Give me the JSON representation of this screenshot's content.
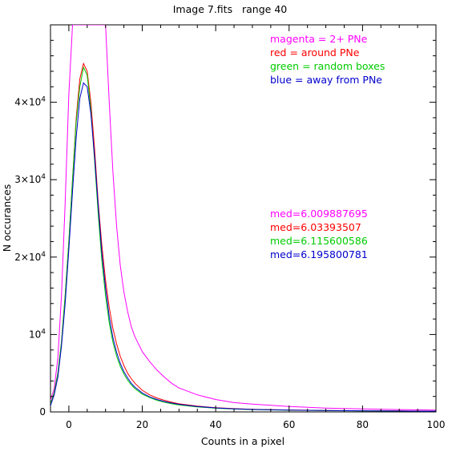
{
  "chart_data": {
    "type": "line",
    "title": "Image 7.fits   range 40",
    "xlabel": "Counts in a pixel",
    "ylabel": "N occurances",
    "xlim": [
      -5,
      100
    ],
    "ylim": [
      0,
      50000
    ],
    "xticks": [
      0,
      20,
      40,
      60,
      80,
      100
    ],
    "xtick_labels": [
      "0",
      "20",
      "40",
      "60",
      "80",
      "100"
    ],
    "yticks": [
      0,
      10000,
      20000,
      30000,
      40000
    ],
    "ytick_labels": [
      {
        "base": "0",
        "exp": ""
      },
      {
        "base": "10",
        "exp": "4"
      },
      {
        "base": "2×10",
        "exp": "4"
      },
      {
        "base": "3×10",
        "exp": "4"
      },
      {
        "base": "4×10",
        "exp": "4"
      }
    ],
    "grid": false,
    "legend_position": "top-right",
    "legend": [
      {
        "text": "magenta = 2+ PNe",
        "color": "#ff00ff"
      },
      {
        "text": "red = around PNe",
        "color": "#ff0000"
      },
      {
        "text": "green = random boxes",
        "color": "#00cc00"
      },
      {
        "text": "blue = away from PNe",
        "color": "#0000cc"
      }
    ],
    "annotations": [
      {
        "text": "med=6.009887695",
        "color": "#ff00ff"
      },
      {
        "text": "med=6.03393507",
        "color": "#ff0000"
      },
      {
        "text": "med=6.115600586",
        "color": "#00cc00"
      },
      {
        "text": "med=6.195800781",
        "color": "#0000cc"
      }
    ],
    "series": [
      {
        "color": "#ff00ff",
        "x": [
          -5,
          -4,
          -3,
          -2,
          -1,
          0,
          1,
          2,
          3,
          4,
          5,
          6,
          7,
          8,
          9,
          10,
          11,
          12,
          13,
          14,
          15,
          16,
          17,
          18,
          20,
          22,
          24,
          26,
          28,
          30,
          35,
          40,
          45,
          50,
          60,
          70,
          80,
          90,
          100
        ],
        "y": [
          1500,
          3000,
          7000,
          15000,
          27000,
          41000,
          50000,
          50000,
          50000,
          50000,
          50000,
          50000,
          50000,
          50000,
          50000,
          50000,
          40000,
          31000,
          24000,
          19000,
          15500,
          13000,
          11000,
          9700,
          7800,
          6500,
          5400,
          4500,
          3700,
          3100,
          2200,
          1600,
          1200,
          1000,
          700,
          500,
          380,
          300,
          230
        ]
      },
      {
        "color": "#ff0000",
        "x": [
          -5,
          -4,
          -3,
          -2,
          -1,
          0,
          1,
          2,
          3,
          4,
          5,
          6,
          7,
          8,
          9,
          10,
          11,
          12,
          13,
          14,
          15,
          16,
          17,
          18,
          20,
          22,
          24,
          26,
          28,
          30,
          35,
          40,
          45,
          50,
          60,
          70,
          80,
          90,
          100
        ],
        "y": [
          1000,
          2500,
          5000,
          9000,
          15000,
          22000,
          30000,
          38000,
          43000,
          45000,
          44000,
          40000,
          34000,
          27000,
          21500,
          17000,
          13500,
          10800,
          8800,
          7200,
          6000,
          5000,
          4300,
          3700,
          2800,
          2200,
          1800,
          1500,
          1250,
          1050,
          750,
          550,
          420,
          340,
          250,
          190,
          150,
          120,
          100
        ]
      },
      {
        "color": "#00cc00",
        "x": [
          -5,
          -4,
          -3,
          -2,
          -1,
          0,
          1,
          2,
          3,
          4,
          5,
          6,
          7,
          8,
          9,
          10,
          11,
          12,
          13,
          14,
          15,
          16,
          17,
          18,
          20,
          22,
          24,
          26,
          28,
          30,
          35,
          40,
          45,
          50,
          60,
          70,
          80,
          90,
          100
        ],
        "y": [
          1000,
          2500,
          5000,
          9000,
          15000,
          22000,
          30000,
          37500,
          42000,
          44500,
          43500,
          39000,
          32500,
          25500,
          19500,
          15000,
          11500,
          9000,
          7200,
          5900,
          4900,
          4100,
          3500,
          3000,
          2300,
          1850,
          1500,
          1250,
          1050,
          900,
          650,
          480,
          370,
          300,
          220,
          170,
          130,
          110,
          90
        ]
      },
      {
        "color": "#0000cc",
        "x": [
          -5,
          -4,
          -3,
          -2,
          -1,
          0,
          1,
          2,
          3,
          4,
          5,
          6,
          7,
          8,
          9,
          10,
          11,
          12,
          13,
          14,
          15,
          16,
          17,
          18,
          20,
          22,
          24,
          26,
          28,
          30,
          35,
          40,
          45,
          50,
          60,
          70,
          80,
          90,
          100
        ],
        "y": [
          800,
          2200,
          4500,
          8500,
          14000,
          21000,
          28500,
          35500,
          40500,
          42500,
          42000,
          38500,
          33000,
          26500,
          20500,
          16000,
          12300,
          9600,
          7700,
          6300,
          5200,
          4400,
          3700,
          3200,
          2450,
          1950,
          1600,
          1350,
          1150,
          980,
          700,
          520,
          400,
          320,
          240,
          180,
          140,
          115,
          95
        ]
      }
    ]
  }
}
